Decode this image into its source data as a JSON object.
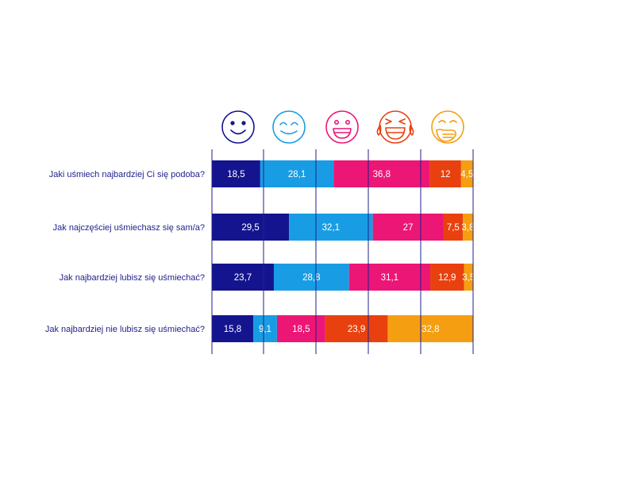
{
  "colors": {
    "text": "#1f1f8c",
    "grid": "#1f1f8c",
    "segments": [
      "#14148f",
      "#189de4",
      "#ec1676",
      "#e8410f",
      "#f59e12"
    ]
  },
  "icons": [
    {
      "name": "smile-icon",
      "color": "#14148f"
    },
    {
      "name": "grin-closed-eyes-icon",
      "color": "#189de4"
    },
    {
      "name": "big-grin-icon",
      "color": "#ec1676"
    },
    {
      "name": "tears-of-joy-icon",
      "color": "#e8410f"
    },
    {
      "name": "hand-over-mouth-icon",
      "color": "#f59e12"
    }
  ],
  "chart_data": {
    "type": "bar",
    "orientation": "horizontal",
    "stacked": true,
    "xlim": [
      0,
      100
    ],
    "grid": true,
    "title": "",
    "categories": [
      "Jaki uśmiech najbardziej Ci się podoba?",
      "Jak najczęściej uśmiechasz się sam/a?",
      "Jak najbardziej lubisz się uśmiechać?",
      "Jak najbardziej nie lubisz się uśmiechać?"
    ],
    "series": [
      {
        "icon": "smile-icon",
        "color": "#14148f",
        "values": [
          18.5,
          29.5,
          23.7,
          15.8
        ],
        "labels": [
          "18,5",
          "29,5",
          "23,7",
          "15,8"
        ]
      },
      {
        "icon": "grin-closed-eyes-icon",
        "color": "#189de4",
        "values": [
          28.1,
          32.1,
          28.8,
          9.1
        ],
        "labels": [
          "28,1",
          "32,1",
          "28,8",
          "9,1"
        ]
      },
      {
        "icon": "big-grin-icon",
        "color": "#ec1676",
        "values": [
          36.8,
          27,
          31.1,
          18.5
        ],
        "labels": [
          "36,8",
          "27",
          "31,1",
          "18,5"
        ]
      },
      {
        "icon": "tears-of-joy-icon",
        "color": "#e8410f",
        "values": [
          12,
          7.5,
          12.9,
          23.9
        ],
        "labels": [
          "12",
          "7,5",
          "12,9",
          "23,9"
        ]
      },
      {
        "icon": "hand-over-mouth-icon",
        "color": "#f59e12",
        "values": [
          4.5,
          3.8,
          3.5,
          32.8
        ],
        "labels": [
          "4,5",
          "3,8",
          "3,5",
          "32,8"
        ]
      }
    ]
  }
}
